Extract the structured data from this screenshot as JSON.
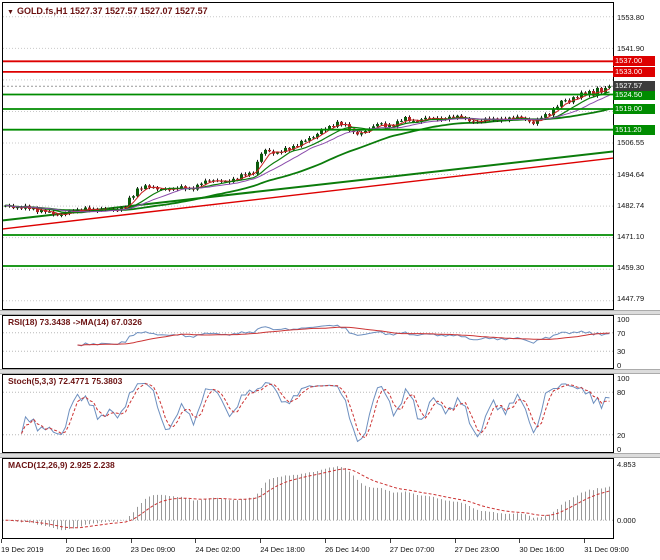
{
  "header": {
    "marker": "▼",
    "text": "GOLD.fs,H1  1527.37 1527.57 1527.07 1527.57"
  },
  "panels": {
    "rsi_label": "RSI(18) 73.3438 ->MA(14) 67.0326",
    "stoch_label": "Stoch(5,3,3) 72.4771 75.3803",
    "macd_label": "MACD(12,26,9) 2.925 2.238"
  },
  "colors": {
    "bull": "#0c5c0c",
    "bear": "#b32424",
    "wick": "#1a1a1a",
    "grid": "#c9c9c9",
    "level_red": "#dd0000",
    "level_green": "#008c00",
    "trend_red": "#dd0000",
    "trend_green": "#0b7c0b",
    "osc_line": "#6d8fbf",
    "signal": "#cc3434",
    "macd_hist": "#999999",
    "header_text": "#6b1212",
    "current_bg": "#3c3c3c"
  },
  "price_axis": {
    "plain": [
      "1553.80",
      "1541.90",
      "1506.55",
      "1494.64",
      "1482.74",
      "1471.10",
      "1459.30",
      "1447.79"
    ],
    "current": {
      "text": "1527.57",
      "bg": "#3c3c3c"
    }
  },
  "chart_data": [
    {
      "type": "candlestick",
      "symbol": "GOLD.fs",
      "timeframe": "H1",
      "title": "GOLD.fs,H1",
      "ohlc_current": {
        "open": 1527.37,
        "high": 1527.57,
        "low": 1527.07,
        "close": 1527.57
      },
      "current_price": 1527.57,
      "y_range": [
        1447.0,
        1559.0
      ],
      "x_labels": [
        "19 Dec 2019",
        "20 Dec 16:00",
        "23 Dec 09:00",
        "24 Dec 02:00",
        "24 Dec 18:00",
        "26 Dec 14:00",
        "27 Dec 07:00",
        "27 Dec 23:00",
        "30 Dec 16:00",
        "31 Dec 09:00"
      ],
      "price_keypoints": [
        [
          0,
          1482.3
        ],
        [
          6,
          1481.6
        ],
        [
          10,
          1480.2
        ],
        [
          14,
          1478.9
        ],
        [
          17,
          1480.8
        ],
        [
          22,
          1481.2
        ],
        [
          27,
          1481.0
        ],
        [
          30,
          1481.8
        ],
        [
          31,
          1485.0
        ],
        [
          33,
          1488.8
        ],
        [
          36,
          1489.8
        ],
        [
          40,
          1488.3
        ],
        [
          43,
          1489.6
        ],
        [
          46,
          1488.6
        ],
        [
          49,
          1491.0
        ],
        [
          52,
          1492.4
        ],
        [
          55,
          1491.2
        ],
        [
          58,
          1493.2
        ],
        [
          61,
          1494.6
        ],
        [
          62,
          1495.2
        ],
        [
          63,
          1499.0
        ],
        [
          64,
          1502.0
        ],
        [
          65,
          1503.3
        ],
        [
          68,
          1502.4
        ],
        [
          71,
          1504.2
        ],
        [
          74,
          1506.3
        ],
        [
          77,
          1508.8
        ],
        [
          79,
          1510.6
        ],
        [
          81,
          1512.4
        ],
        [
          83,
          1513.8
        ],
        [
          85,
          1512.6
        ],
        [
          87,
          1510.2
        ],
        [
          89,
          1509.4
        ],
        [
          91,
          1511.8
        ],
        [
          93,
          1513.6
        ],
        [
          95,
          1512.4
        ],
        [
          97,
          1513.2
        ],
        [
          100,
          1515.4
        ],
        [
          103,
          1514.2
        ],
        [
          106,
          1516.0
        ],
        [
          109,
          1514.8
        ],
        [
          112,
          1516.4
        ],
        [
          115,
          1515.2
        ],
        [
          118,
          1513.9
        ],
        [
          121,
          1515.6
        ],
        [
          124,
          1514.6
        ],
        [
          127,
          1516.2
        ],
        [
          130,
          1515.0
        ],
        [
          132,
          1513.9
        ],
        [
          134,
          1515.8
        ],
        [
          136,
          1517.4
        ],
        [
          138,
          1520.2
        ],
        [
          140,
          1522.6
        ],
        [
          141,
          1521.6
        ],
        [
          142,
          1523.8
        ],
        [
          143,
          1523.0
        ],
        [
          144,
          1524.8
        ],
        [
          145,
          1524.4
        ],
        [
          146,
          1525.8
        ],
        [
          147,
          1524.6
        ],
        [
          148,
          1526.3
        ],
        [
          149,
          1525.4
        ],
        [
          150,
          1526.5
        ],
        [
          151,
          1527.57
        ]
      ],
      "levels": [
        {
          "price": 1537.0,
          "color": "red",
          "labeled": true
        },
        {
          "price": 1533.0,
          "color": "red",
          "labeled": true
        },
        {
          "price": 1524.5,
          "color": "green",
          "labeled": true
        },
        {
          "price": 1519.0,
          "color": "green",
          "labeled": true
        },
        {
          "price": 1511.2,
          "color": "green",
          "labeled": true
        },
        {
          "price": 1471.5,
          "color": "green",
          "labeled": false
        },
        {
          "price": 1459.8,
          "color": "green",
          "labeled": false
        }
      ],
      "trendlines": [
        {
          "p_start": 1473.8,
          "p_end": 1500.5,
          "color": "red",
          "width": 1.4
        },
        {
          "p_start": 1477.0,
          "p_end": 1503.0,
          "color": "green",
          "width": 2
        }
      ],
      "moving_averages": [
        {
          "window": 4,
          "color": "#c82020",
          "width": 1
        },
        {
          "window": 9,
          "color": "#0b7c0b",
          "width": 1.2
        },
        {
          "window": 14,
          "color": "#8a4bab",
          "width": 1
        },
        {
          "window": 34,
          "color": "#0b7c0b",
          "width": 1.8
        }
      ]
    },
    {
      "type": "line",
      "name": "RSI",
      "period": 18,
      "current": 73.3438,
      "ma_period": 14,
      "ma_current": 67.0326,
      "range": [
        0,
        100
      ],
      "levels": [
        70,
        30
      ],
      "axis_labels": [
        "100",
        "70",
        "30",
        "0"
      ]
    },
    {
      "type": "line",
      "name": "Stochastic",
      "params": [
        5,
        3,
        3
      ],
      "current_k": 72.4771,
      "current_d": 75.3803,
      "range": [
        0,
        100
      ],
      "levels": [
        80,
        20
      ],
      "axis_labels": [
        "100",
        "80",
        "20",
        "0"
      ]
    },
    {
      "type": "macd_histogram",
      "name": "MACD",
      "params": [
        12,
        26,
        9
      ],
      "current_macd": 2.925,
      "current_signal": 2.238,
      "axis_labels": [
        "4.853",
        "0.000"
      ]
    }
  ]
}
